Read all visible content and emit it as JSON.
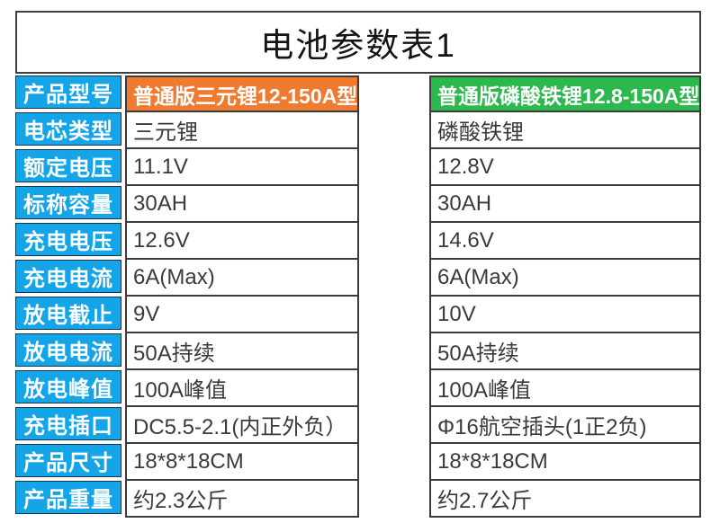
{
  "title": "电池参数表1",
  "colors": {
    "label_bg": "#14a5e8",
    "label_cell_border": "#1d3447",
    "header_left_bg": "#ef7b31",
    "header_right_bg": "#2db84d",
    "cell_border": "#3b3b3b",
    "title_border": "#3f3f3f",
    "title_text": "#141414",
    "value_text": "#3a3a3a"
  },
  "table": {
    "row_header_label": "产品型号",
    "products": [
      {
        "model": "普通版三元锂12-150A型"
      },
      {
        "model": "普通版磷酸铁锂12.8-150A型"
      }
    ],
    "rows": [
      {
        "label": "电芯类型",
        "left": "三元锂",
        "right": "磷酸铁锂"
      },
      {
        "label": "额定电压",
        "left": "11.1V",
        "right": "12.8V"
      },
      {
        "label": "标称容量",
        "left": "30AH",
        "right": "30AH"
      },
      {
        "label": "充电电压",
        "left": "12.6V",
        "right": "14.6V"
      },
      {
        "label": "充电电流",
        "left": "6A(Max)",
        "right": "6A(Max)"
      },
      {
        "label": "放电截止",
        "left": "9V",
        "right": "10V"
      },
      {
        "label": "放电电流",
        "left": "50A持续",
        "right": "50A持续"
      },
      {
        "label": "放电峰值",
        "left": "100A峰值",
        "right": "100A峰值"
      },
      {
        "label": "充电插口",
        "left": "DC5.5-2.1(内正外负）",
        "right": "Φ16航空插头(1正2负)"
      },
      {
        "label": "产品尺寸",
        "left": "18*8*18CM",
        "right": "18*8*18CM"
      },
      {
        "label": "产品重量",
        "left": "约2.3公斤",
        "right": "约2.7公斤"
      }
    ]
  }
}
